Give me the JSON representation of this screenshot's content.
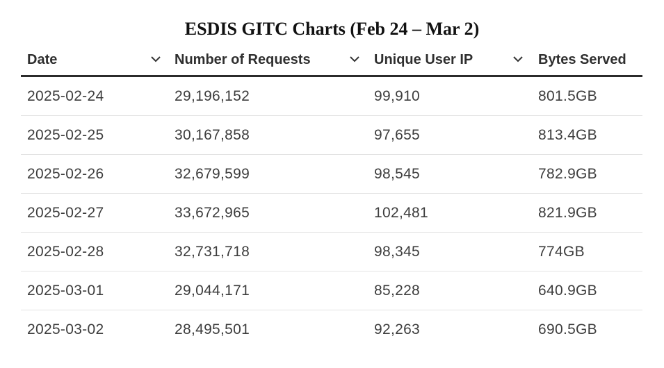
{
  "title": "ESDIS GITC Charts (Feb 24 – Mar 2)",
  "table": {
    "columns": [
      {
        "label": "Date",
        "sortable": true
      },
      {
        "label": "Number of Requests",
        "sortable": true
      },
      {
        "label": "Unique User IP",
        "sortable": true
      },
      {
        "label": "Bytes Served",
        "sortable": false
      }
    ],
    "rows": [
      [
        "2025-02-24",
        "29,196,152",
        "99,910",
        "801.5GB"
      ],
      [
        "2025-02-25",
        "30,167,858",
        "97,655",
        "813.4GB"
      ],
      [
        "2025-02-26",
        "32,679,599",
        "98,545",
        "782.9GB"
      ],
      [
        "2025-02-27",
        "33,672,965",
        "102,481",
        "821.9GB"
      ],
      [
        "2025-02-28",
        "32,731,718",
        "98,345",
        "774GB"
      ],
      [
        "2025-03-01",
        "29,044,171",
        "85,228",
        "640.9GB"
      ],
      [
        "2025-03-02",
        "28,495,501",
        "92,263",
        "690.5GB"
      ]
    ]
  },
  "icons": {
    "sort": "chevron-down-icon"
  },
  "colors": {
    "header_rule": "#2b2b2b",
    "row_divider": "#e3e3e3",
    "text": "#3d3d3d"
  }
}
